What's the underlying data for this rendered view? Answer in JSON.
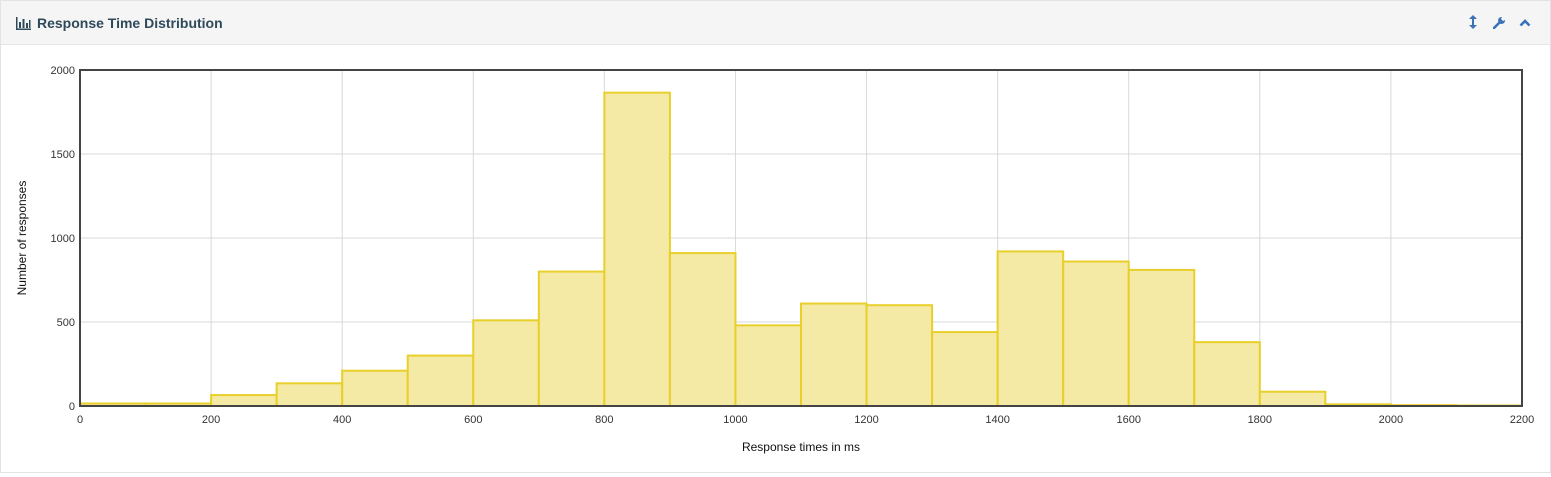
{
  "panel": {
    "title": "Response Time Distribution",
    "icons": {
      "title": "bar-chart-icon",
      "expand": "vertical-resize-icon",
      "settings": "wrench-icon",
      "collapse": "chevron-up-icon"
    }
  },
  "colors": {
    "bar_fill": "#f5e9a6",
    "bar_stroke": "#e8cf2a",
    "title": "#2e4a5a",
    "icon": "#3a73b8"
  },
  "chart_data": {
    "type": "bar",
    "title": "",
    "xlabel": "Response times in ms",
    "ylabel": "Number of responses",
    "xlim": [
      0,
      2200
    ],
    "ylim": [
      0,
      2000
    ],
    "x_ticks": [
      0,
      200,
      400,
      600,
      800,
      1000,
      1200,
      1400,
      1600,
      1800,
      2000,
      2200
    ],
    "y_ticks": [
      0,
      500,
      1000,
      1500,
      2000
    ],
    "bin_width": 100,
    "grid": true,
    "bins": [
      {
        "start": 0,
        "value": 15
      },
      {
        "start": 100,
        "value": 15
      },
      {
        "start": 200,
        "value": 65
      },
      {
        "start": 300,
        "value": 135
      },
      {
        "start": 400,
        "value": 210
      },
      {
        "start": 500,
        "value": 300
      },
      {
        "start": 600,
        "value": 510
      },
      {
        "start": 700,
        "value": 800
      },
      {
        "start": 800,
        "value": 1865
      },
      {
        "start": 900,
        "value": 910
      },
      {
        "start": 1000,
        "value": 480
      },
      {
        "start": 1100,
        "value": 610
      },
      {
        "start": 1200,
        "value": 600
      },
      {
        "start": 1300,
        "value": 440
      },
      {
        "start": 1400,
        "value": 920
      },
      {
        "start": 1500,
        "value": 860
      },
      {
        "start": 1600,
        "value": 810
      },
      {
        "start": 1700,
        "value": 380
      },
      {
        "start": 1800,
        "value": 85
      },
      {
        "start": 1900,
        "value": 10
      },
      {
        "start": 2000,
        "value": 5
      },
      {
        "start": 2100,
        "value": 3
      }
    ]
  }
}
